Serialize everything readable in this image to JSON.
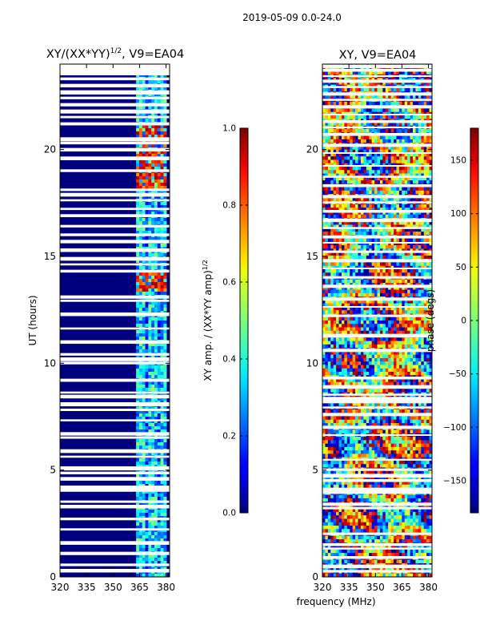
{
  "figure": {
    "suptitle": "2019-05-09 0.0-24.0",
    "xlabel_shared": "frequency (MHz)"
  },
  "chart_data": [
    {
      "type": "heatmap",
      "title": "XY/(XX*YY)",
      "title_exponent": "1/2",
      "title_suffix": ", V9=EA04",
      "ylabel": "UT (hours)",
      "xlim": [
        320,
        382
      ],
      "ylim": [
        0,
        24
      ],
      "xticks": [
        "320",
        "335",
        "350",
        "365",
        "380"
      ],
      "yticks": [
        "0",
        "5",
        "10",
        "15",
        "20"
      ],
      "colorbar": {
        "label": "XY amp. / (XX*YY amp)",
        "label_exponent": "1/2",
        "range": [
          0.0,
          1.0
        ],
        "ticks": [
          "0.0",
          "0.2",
          "0.4",
          "0.6",
          "0.8",
          "1.0"
        ],
        "colormap": "jet"
      },
      "description_values": {
        "background_amplitude": 0.0,
        "signal_band_mhz": [
          363,
          380
        ],
        "signal_amplitude_typical": 0.35,
        "hot_intervals_ut": [
          [
            13.3,
            14.2
          ],
          [
            18.2,
            21.2
          ]
        ],
        "hot_amplitude": 0.85
      }
    },
    {
      "type": "heatmap",
      "title": "XY, V9=EA04",
      "ylabel": "",
      "xlim": [
        320,
        382
      ],
      "ylim": [
        0,
        24
      ],
      "xticks": [
        "320",
        "335",
        "350",
        "365",
        "380"
      ],
      "yticks": [
        "0",
        "5",
        "10",
        "15",
        "20"
      ],
      "colorbar": {
        "label": "phase (degs)",
        "range": [
          -180,
          180
        ],
        "ticks": [
          "-150",
          "-100",
          "-50",
          "0",
          "50",
          "100",
          "150"
        ],
        "colormap": "jet"
      }
    }
  ]
}
